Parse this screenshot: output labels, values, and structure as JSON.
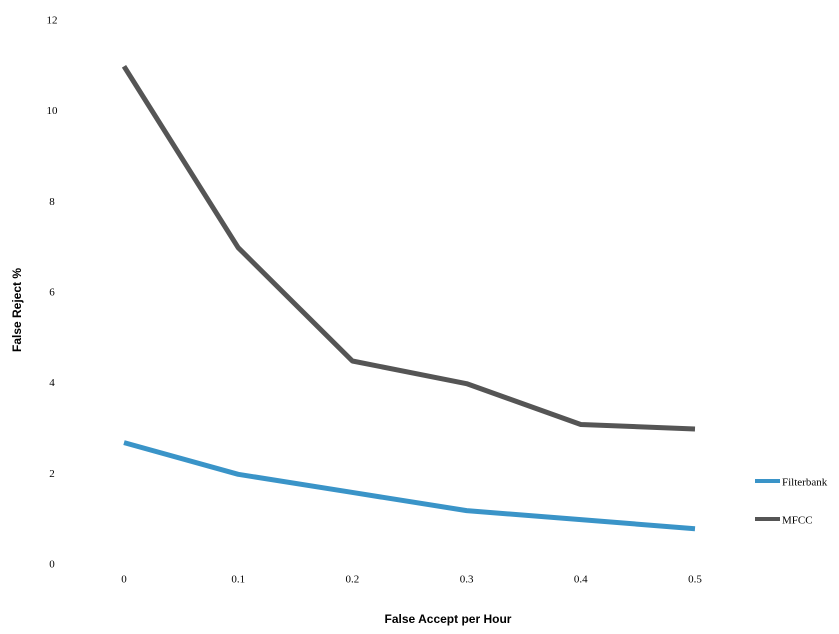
{
  "chart_data": {
    "type": "line",
    "x_label": "False Accept per Hour",
    "y_label": "False Reject %",
    "x": [
      0,
      0.1,
      0.2,
      0.3,
      0.4,
      0.5
    ],
    "series": [
      {
        "name": "Filterbank",
        "color": "#3a94c8",
        "values": [
          2.7,
          2,
          1.6,
          1.2,
          1,
          0.8
        ]
      },
      {
        "name": "MFCC",
        "color": "#555555",
        "values": [
          11,
          7,
          4.5,
          4,
          3.1,
          3
        ]
      }
    ],
    "xlim": [
      0,
      0.5
    ],
    "xticks": [
      0,
      0.1,
      0.2,
      0.3,
      0.4,
      0.5
    ],
    "ylim": [
      0,
      12
    ],
    "yticks": [
      0,
      2,
      4,
      6,
      8,
      10,
      12
    ],
    "grid": false,
    "legend": "right"
  }
}
